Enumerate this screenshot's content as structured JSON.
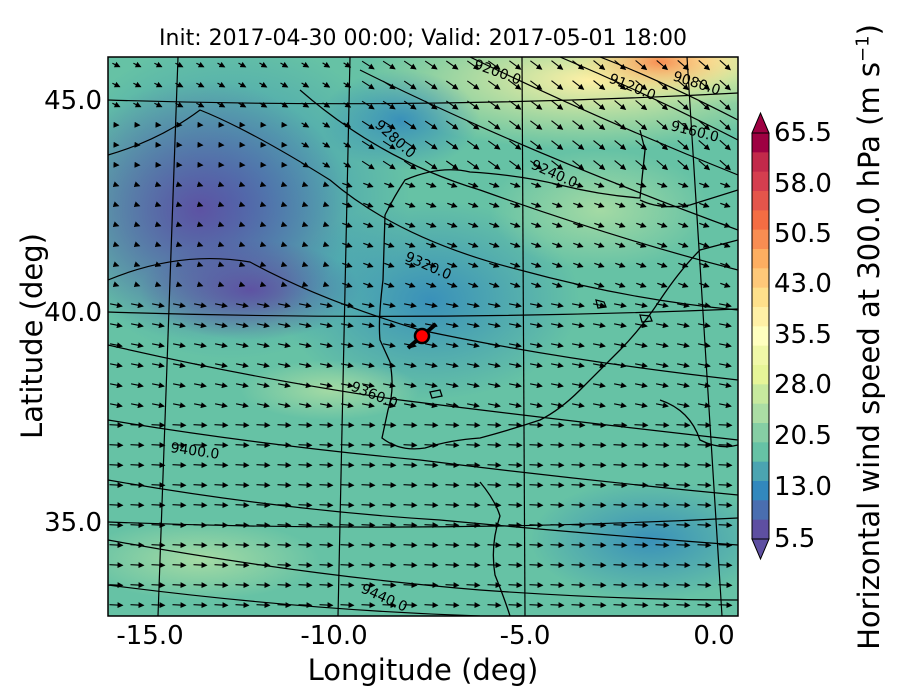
{
  "title": "Init: 2017-04-30 00:00; Valid: 2017-05-01 18:00",
  "map": {
    "x_label": "Longitude (deg)",
    "y_label": "Latitude (deg)",
    "x_ticks": [
      "-15.0",
      "-10.0",
      "-5.0",
      "0.0"
    ],
    "y_ticks": [
      "45.0",
      "40.0",
      "35.0"
    ],
    "lon_range": [
      -16,
      0.2
    ],
    "lat_range": [
      32.8,
      46.1
    ],
    "marker": {
      "lon": -7.7,
      "lat": 39.3,
      "color": "#ff0000"
    },
    "contour_labels": [
      "9080.0",
      "9120.0",
      "9160.0",
      "9200.0",
      "9240.0",
      "9280.0",
      "9320.0",
      "9360.0",
      "9400.0",
      "9440.0"
    ]
  },
  "colorbar": {
    "label_main": "Horizontal wind speed at 300.0 hPa (m s",
    "label_sup": "−1",
    "label_close": ")",
    "ticks": [
      "65.5",
      "58.0",
      "50.5",
      "43.0",
      "35.5",
      "28.0",
      "20.5",
      "13.0",
      "5.5"
    ],
    "colors": [
      "#9e0142",
      "#c2294a",
      "#d53e4f",
      "#e4554b",
      "#f46d43",
      "#f88d52",
      "#fdae61",
      "#fec879",
      "#fee08b",
      "#fff0a6",
      "#ffffbf",
      "#f0f8a8",
      "#e6f598",
      "#c7e99e",
      "#abdda4",
      "#86cea4",
      "#66c2a5",
      "#4ba4b1",
      "#3288bd",
      "#4a6eb0",
      "#5e4fa2"
    ]
  }
}
